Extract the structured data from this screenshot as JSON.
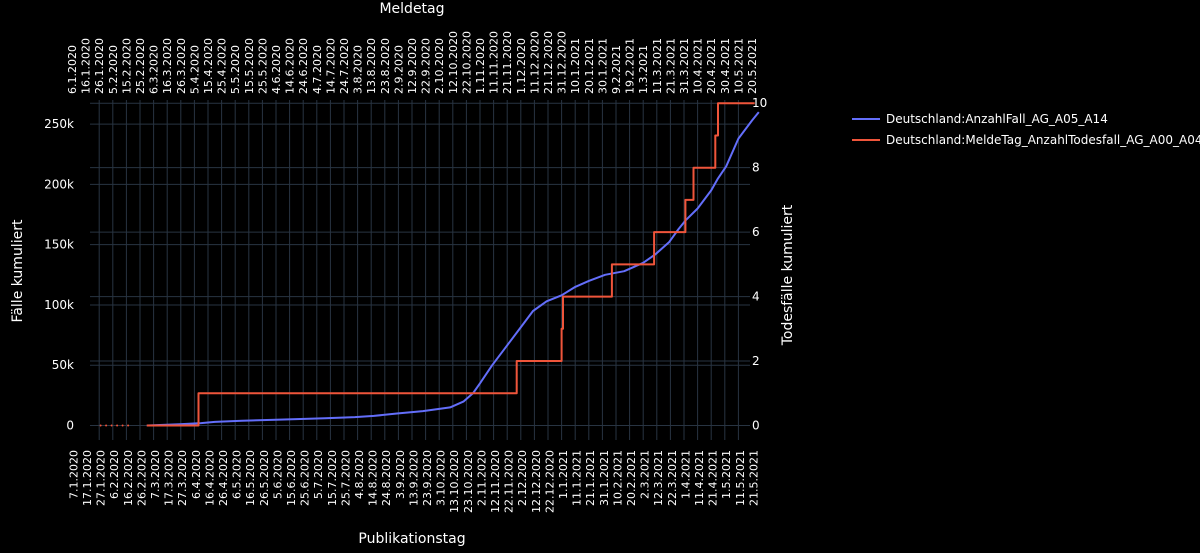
{
  "chart_data": {
    "type": "line",
    "x_top_title": "Meldetag",
    "x_bottom_title": "Publikationstag",
    "y_left_title": "Fälle kumuliert",
    "y_right_title": "Todesfälle kumuliert",
    "top_ticks": [
      "6.1.2020",
      "16.1.2020",
      "26.1.2020",
      "5.2.2020",
      "15.2.2020",
      "25.2.2020",
      "6.3.2020",
      "16.3.2020",
      "26.3.2020",
      "5.4.2020",
      "15.4.2020",
      "25.4.2020",
      "5.5.2020",
      "15.5.2020",
      "25.5.2020",
      "4.6.2020",
      "14.6.2020",
      "24.6.2020",
      "4.7.2020",
      "14.7.2020",
      "24.7.2020",
      "3.8.2020",
      "13.8.2020",
      "23.8.2020",
      "2.9.2020",
      "12.9.2020",
      "22.9.2020",
      "2.10.2020",
      "12.10.2020",
      "22.10.2020",
      "1.11.2020",
      "11.11.2020",
      "21.11.2020",
      "1.12.2020",
      "11.12.2020",
      "21.12.2020",
      "31.12.2020",
      "10.1.2021",
      "20.1.2021",
      "30.1.2021",
      "9.2.2021",
      "19.2.2021",
      "1.3.2021",
      "11.3.2021",
      "21.3.2021",
      "31.3.2021",
      "10.4.2021",
      "20.4.2021",
      "30.4.2021",
      "10.5.2021",
      "20.5.2021"
    ],
    "bottom_ticks": [
      "7.1.2020",
      "17.1.2020",
      "27.1.2020",
      "6.2.2020",
      "16.2.2020",
      "26.2.2020",
      "7.3.2020",
      "17.3.2020",
      "27.3.2020",
      "6.4.2020",
      "16.4.2020",
      "26.4.2020",
      "6.5.2020",
      "16.5.2020",
      "26.5.2020",
      "5.6.2020",
      "15.6.2020",
      "25.6.2020",
      "5.7.2020",
      "15.7.2020",
      "25.7.2020",
      "4.8.2020",
      "14.8.2020",
      "24.8.2020",
      "3.9.2020",
      "13.9.2020",
      "23.9.2020",
      "3.10.2020",
      "13.10.2020",
      "23.10.2020",
      "2.11.2020",
      "12.11.2020",
      "22.11.2020",
      "2.12.2020",
      "12.12.2020",
      "22.12.2020",
      "1.1.2021",
      "11.1.2021",
      "21.1.2021",
      "31.1.2021",
      "10.2.2021",
      "20.2.2021",
      "2.3.2021",
      "12.3.2021",
      "22.3.2021",
      "1.4.2021",
      "11.4.2021",
      "21.4.2021",
      "1.5.2021",
      "11.5.2021",
      "21.5.2021"
    ],
    "y_left_ticks": [
      "0",
      "50k",
      "100k",
      "150k",
      "200k",
      "250k"
    ],
    "y_right_ticks": [
      "0",
      "2",
      "4",
      "6",
      "8",
      "10"
    ],
    "y_left_range": [
      -12000,
      270000
    ],
    "y_right_range": [
      -0.45,
      10.1
    ],
    "grid": true,
    "legend_position": "top-right",
    "series": [
      {
        "name": "Deutschland:AnzahlFall_AG_A05_A14",
        "color": "#636efa",
        "axis": "left",
        "x": [
          "2020-03-01",
          "2020-03-25",
          "2020-04-10",
          "2020-04-20",
          "2020-05-10",
          "2020-06-10",
          "2020-07-10",
          "2020-08-01",
          "2020-08-15",
          "2020-09-01",
          "2020-09-20",
          "2020-10-10",
          "2020-10-20",
          "2020-10-27",
          "2020-11-01",
          "2020-11-10",
          "2020-11-20",
          "2020-11-30",
          "2020-12-10",
          "2020-12-20",
          "2020-12-31",
          "2021-01-10",
          "2021-01-20",
          "2021-02-01",
          "2021-02-15",
          "2021-03-01",
          "2021-03-10",
          "2021-03-20",
          "2021-03-27",
          "2021-04-01",
          "2021-04-10",
          "2021-04-20",
          "2021-04-25",
          "2021-05-01",
          "2021-05-10",
          "2021-05-20",
          "2021-05-25"
        ],
        "y": [
          0,
          1000,
          2000,
          3000,
          4000,
          5000,
          6000,
          7000,
          8000,
          10000,
          12000,
          15000,
          20000,
          27000,
          35000,
          50000,
          65000,
          80000,
          95000,
          103000,
          108000,
          115000,
          120000,
          125000,
          128000,
          135000,
          142000,
          152000,
          163000,
          170000,
          180000,
          195000,
          205000,
          215000,
          238000,
          253000,
          260000
        ]
      },
      {
        "name": "Deutschland:MeldeTag_AnzahlTodesfall_AG_A00_A04",
        "color": "#ef553b",
        "axis": "right",
        "x": [
          "2020-03-01",
          "2020-04-08",
          "2020-04-08",
          "2020-11-28",
          "2020-11-28",
          "2020-12-31",
          "2020-12-31",
          "2021-01-01",
          "2021-01-01",
          "2021-02-06",
          "2021-02-06",
          "2021-03-09",
          "2021-03-09",
          "2021-04-01",
          "2021-04-01",
          "2021-04-07",
          "2021-04-07",
          "2021-04-23",
          "2021-04-23",
          "2021-04-25",
          "2021-04-25",
          "2021-04-29",
          "2021-04-29",
          "2021-05-22"
        ],
        "y": [
          0,
          0,
          1,
          1,
          2,
          2,
          3,
          3,
          4,
          4,
          5,
          5,
          6,
          6,
          7,
          7,
          8,
          8,
          9,
          9,
          10,
          10,
          10,
          10
        ]
      }
    ]
  }
}
